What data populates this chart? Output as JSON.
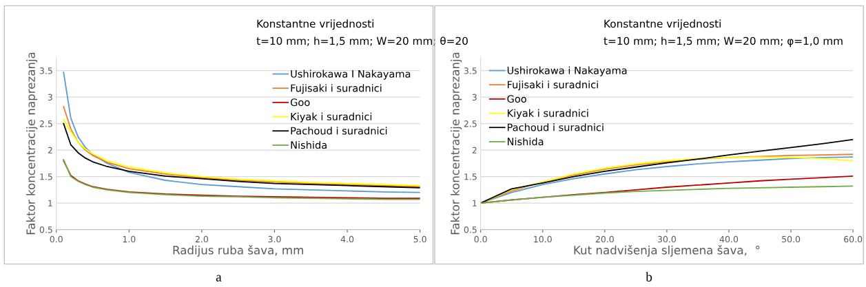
{
  "chart_data": [
    {
      "type": "line",
      "title": "Konstantne vrijednosti",
      "subtitle": "t=10 mm; h=1,5 mm; W=20 mm; θ=20",
      "xlabel": "Radijus ruba šava, mm",
      "ylabel": "Faktor koncentracije naprezanja",
      "annotations": [
        "a"
      ],
      "x": [
        0.1,
        0.2,
        0.3,
        0.4,
        0.5,
        0.7,
        1.0,
        1.5,
        2.0,
        2.5,
        3.0,
        3.5,
        4.0,
        4.5,
        5.0
      ],
      "series": [
        {
          "name": "Ushirokawa I Nakayama",
          "color": "#5b9bd5",
          "values": [
            3.47,
            2.6,
            2.25,
            2.05,
            1.92,
            1.75,
            1.58,
            1.43,
            1.35,
            1.31,
            1.27,
            1.25,
            1.23,
            1.21,
            1.2
          ]
        },
        {
          "name": "Fujisaki i suradnici",
          "color": "#ed7d31",
          "values": [
            2.82,
            2.4,
            2.15,
            2.0,
            1.9,
            1.77,
            1.65,
            1.55,
            1.48,
            1.43,
            1.4,
            1.37,
            1.35,
            1.33,
            1.31
          ]
        },
        {
          "name": "Goo",
          "color": "#c00000",
          "values": [
            1.8,
            1.52,
            1.42,
            1.36,
            1.31,
            1.26,
            1.21,
            1.17,
            1.15,
            1.13,
            1.12,
            1.11,
            1.1,
            1.09,
            1.09
          ]
        },
        {
          "name": "Kiyak i suradnici",
          "color": "#ffff00",
          "values": [
            2.58,
            2.35,
            2.15,
            2.02,
            1.93,
            1.8,
            1.68,
            1.57,
            1.5,
            1.45,
            1.42,
            1.39,
            1.37,
            1.35,
            1.33
          ]
        },
        {
          "name": "Pachoud i suradnici",
          "color": "#000000",
          "values": [
            2.5,
            2.1,
            1.95,
            1.85,
            1.78,
            1.69,
            1.6,
            1.51,
            1.46,
            1.41,
            1.37,
            1.35,
            1.33,
            1.31,
            1.29
          ]
        },
        {
          "name": "Nishida",
          "color": "#70ad47",
          "values": [
            1.82,
            1.5,
            1.41,
            1.35,
            1.3,
            1.25,
            1.2,
            1.16,
            1.13,
            1.12,
            1.1,
            1.09,
            1.08,
            1.07,
            1.07
          ]
        }
      ],
      "xlim": [
        0,
        5
      ],
      "xticks": [
        {
          "value": 0,
          "label": "0.0"
        },
        {
          "value": 1,
          "label": "1.0"
        },
        {
          "value": 2,
          "label": "2.0"
        },
        {
          "value": 3,
          "label": "3.0"
        },
        {
          "value": 4,
          "label": "4.0"
        },
        {
          "value": 5,
          "label": "5.0"
        }
      ],
      "ylim": [
        0.5,
        3.75
      ],
      "yticks": [
        0.5,
        1,
        1.5,
        2,
        2.5,
        3,
        3.5
      ],
      "grid": "y",
      "legend": "top right"
    },
    {
      "type": "line",
      "title": "Konstantne vrijednosti",
      "subtitle": "t=10 mm; h=1,5 mm; W=20 mm; φ=1,0 mm",
      "xlabel": "Kut nadvišenja sljemena šava,  °",
      "ylabel": "Faktor koncentracije naprezanja",
      "annotations": [
        "b"
      ],
      "x": [
        0,
        5,
        10,
        15,
        20,
        25,
        30,
        35,
        40,
        45,
        50,
        55,
        60
      ],
      "series": [
        {
          "name": "Ushirokawa i Nakayama",
          "color": "#5b9bd5",
          "values": [
            1.0,
            1.2,
            1.35,
            1.46,
            1.55,
            1.63,
            1.69,
            1.74,
            1.78,
            1.81,
            1.84,
            1.86,
            1.87
          ]
        },
        {
          "name": "Fujisaki i suradnici",
          "color": "#ed7d31",
          "values": [
            1.0,
            1.23,
            1.4,
            1.53,
            1.64,
            1.72,
            1.78,
            1.83,
            1.86,
            1.88,
            1.9,
            1.91,
            1.92
          ]
        },
        {
          "name": "Goo",
          "color": "#c00000",
          "values": [
            1.0,
            1.06,
            1.11,
            1.16,
            1.2,
            1.25,
            1.3,
            1.34,
            1.38,
            1.42,
            1.45,
            1.48,
            1.51
          ]
        },
        {
          "name": "Kiyak i suradnici",
          "color": "#ffff00",
          "values": [
            1.0,
            1.25,
            1.4,
            1.55,
            1.66,
            1.74,
            1.8,
            1.84,
            1.86,
            1.87,
            1.86,
            1.84,
            1.8
          ]
        },
        {
          "name": "Pachoud i suradnici",
          "color": "#000000",
          "values": [
            1.0,
            1.27,
            1.38,
            1.5,
            1.6,
            1.68,
            1.76,
            1.83,
            1.91,
            1.98,
            2.05,
            2.12,
            2.2
          ]
        },
        {
          "name": "Nishida",
          "color": "#70ad47",
          "values": [
            1.0,
            1.06,
            1.11,
            1.15,
            1.19,
            1.22,
            1.24,
            1.26,
            1.28,
            1.29,
            1.3,
            1.31,
            1.32
          ]
        }
      ],
      "xlim": [
        0,
        60
      ],
      "xticks": [
        {
          "value": 0,
          "label": "0.0"
        },
        {
          "value": 10,
          "label": "10.0"
        },
        {
          "value": 20,
          "label": "20.0"
        },
        {
          "value": 30,
          "label": "30.0"
        },
        {
          "value": 40,
          "label": "40.0"
        },
        {
          "value": 50,
          "label": "50.0"
        },
        {
          "value": 60,
          "label": "60.0"
        }
      ],
      "ylim": [
        0.5,
        3.75
      ],
      "yticks": [
        0.5,
        1,
        1.5,
        2,
        2.5,
        3,
        3.5
      ],
      "grid": "y",
      "legend": "top left"
    }
  ]
}
